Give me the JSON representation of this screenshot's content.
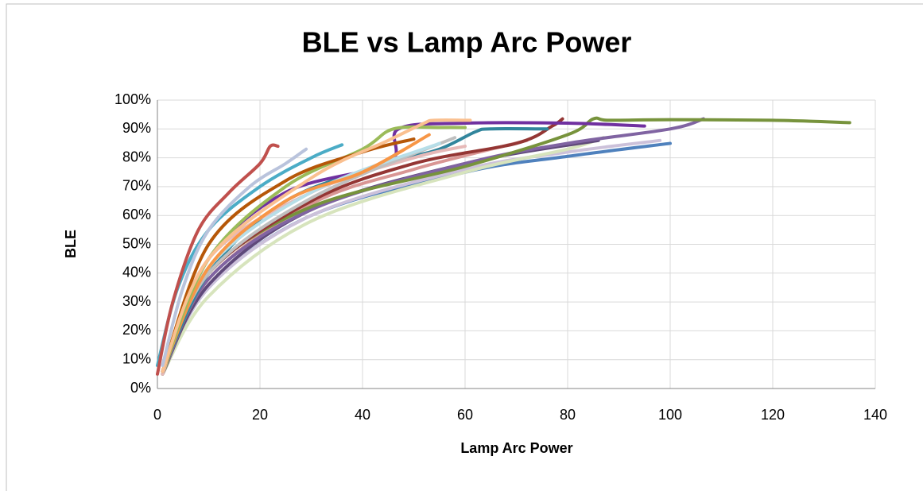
{
  "chart_data": {
    "type": "line",
    "title": "BLE vs Lamp Arc Power",
    "x_label": "Lamp Arc Power",
    "y_label": "BLE",
    "xlim": [
      0,
      140
    ],
    "xticks": [
      0,
      20,
      40,
      60,
      80,
      100,
      120,
      140
    ],
    "ylim": [
      0,
      100
    ],
    "yticks": [
      {
        "value": 0,
        "label": "0%"
      },
      {
        "value": 10,
        "label": "10%"
      },
      {
        "value": 20,
        "label": "20%"
      },
      {
        "value": 30,
        "label": "30%"
      },
      {
        "value": 40,
        "label": "40%"
      },
      {
        "value": 50,
        "label": "50%"
      },
      {
        "value": 60,
        "label": "60%"
      },
      {
        "value": 70,
        "label": "70%"
      },
      {
        "value": 80,
        "label": "80%"
      },
      {
        "value": 90,
        "label": "90%"
      },
      {
        "value": 100,
        "label": "100%"
      }
    ],
    "grid": true,
    "series": [
      {
        "color": "#4f81bd",
        "x": [
          1,
          10,
          30,
          60,
          80,
          100
        ],
        "values": [
          5,
          35,
          60,
          75,
          80.5,
          85
        ]
      },
      {
        "color": "#ccc1da",
        "x": [
          1,
          10,
          30,
          60,
          80,
          98
        ],
        "values": [
          5,
          35,
          60,
          76,
          82,
          86
        ]
      },
      {
        "color": "#d7e4bd",
        "x": [
          1,
          10,
          30,
          60,
          80,
          87
        ],
        "values": [
          5,
          32,
          58,
          75,
          83,
          87
        ]
      },
      {
        "color": "#5f497a",
        "x": [
          1,
          10,
          30,
          60,
          86
        ],
        "values": [
          5,
          36,
          62,
          78,
          86
        ]
      },
      {
        "color": "#d99694",
        "x": [
          1,
          10,
          30,
          50,
          72
        ],
        "values": [
          5,
          38,
          64,
          76,
          86
        ]
      },
      {
        "color": "#8064a2",
        "x": [
          1,
          10,
          30,
          60,
          80,
          100,
          106.5
        ],
        "values": [
          5,
          38,
          62,
          78,
          85,
          90,
          93.5
        ]
      },
      {
        "color": "#77933c",
        "x": [
          1,
          10,
          30,
          60,
          80,
          85,
          88,
          100,
          120,
          135
        ],
        "values": [
          5,
          40,
          63,
          77,
          88,
          93.5,
          93,
          93.2,
          93,
          92.2
        ]
      },
      {
        "color": "#943634",
        "x": [
          1,
          10,
          30,
          50,
          70,
          77,
          79
        ],
        "values": [
          6,
          40,
          65,
          78,
          85,
          91,
          93.5
        ]
      },
      {
        "color": "#31859c",
        "x": [
          1,
          10,
          25,
          45,
          55,
          62,
          65,
          76
        ],
        "values": [
          6,
          40,
          65,
          78,
          83,
          89,
          90,
          90
        ]
      },
      {
        "color": "#7030a0",
        "x": [
          1,
          10,
          25,
          45,
          47,
          60,
          80,
          95
        ],
        "values": [
          6,
          45,
          68,
          78,
          90,
          92,
          92,
          91
        ]
      },
      {
        "color": "#e6b9b8",
        "x": [
          1,
          10,
          30,
          50,
          60
        ],
        "values": [
          5,
          45,
          68,
          80,
          84
        ]
      },
      {
        "color": "#bfbfbf",
        "x": [
          1,
          10,
          30,
          58
        ],
        "values": [
          6,
          40,
          66,
          87
        ]
      },
      {
        "color": "#b7dee8",
        "x": [
          1,
          10,
          30,
          55
        ],
        "values": [
          6,
          42,
          68,
          85
        ]
      },
      {
        "color": "#f79646",
        "x": [
          1,
          10,
          25,
          40,
          53
        ],
        "values": [
          6,
          42,
          65,
          75,
          88
        ]
      },
      {
        "color": "#9bbb59",
        "x": [
          1,
          10,
          25,
          40,
          46,
          55,
          60
        ],
        "values": [
          6,
          45,
          70,
          83,
          90,
          90.5,
          90.5
        ]
      },
      {
        "color": "#b65708",
        "x": [
          1,
          10,
          25,
          40,
          50
        ],
        "values": [
          6,
          50,
          72,
          82,
          86.5
        ]
      },
      {
        "color": "#fac090",
        "x": [
          1,
          10,
          30,
          45,
          52,
          54,
          61
        ],
        "values": [
          6,
          45,
          73,
          86,
          92,
          93,
          93
        ]
      },
      {
        "color": "#4bacc6",
        "x": [
          0,
          4,
          10,
          20,
          30,
          36
        ],
        "values": [
          8,
          35,
          55,
          70,
          80,
          84.5
        ]
      },
      {
        "color": "#b9c3dc",
        "x": [
          1,
          5,
          10,
          18,
          25,
          29
        ],
        "values": [
          8,
          35,
          55,
          70,
          78,
          83
        ]
      },
      {
        "color": "#c0504d",
        "x": [
          0,
          3,
          8,
          14,
          20,
          22,
          23.5
        ],
        "values": [
          5,
          30,
          55,
          68,
          78,
          84,
          84
        ]
      }
    ]
  }
}
